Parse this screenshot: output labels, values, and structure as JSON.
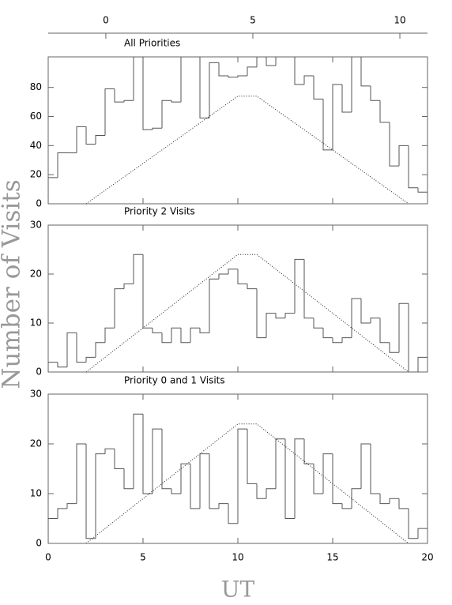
{
  "chart_data": [
    {
      "type": "histogram",
      "title": "All Priorities",
      "bins": [
        0,
        0.5,
        1,
        1.5,
        2,
        2.5,
        3,
        3.5,
        4,
        4.5,
        5,
        5.5,
        6,
        6.5,
        7,
        7.5,
        8,
        8.5,
        9,
        9.5,
        10,
        10.5,
        11,
        11.5,
        12,
        12.5,
        13,
        13.5,
        14,
        14.5,
        15,
        15.5,
        16,
        16.5,
        17,
        17.5,
        18,
        18.5,
        19,
        19.5,
        20
      ],
      "counts": [
        18,
        35,
        35,
        53,
        41,
        47,
        79,
        70,
        71,
        101,
        51,
        52,
        71,
        70,
        101,
        101,
        59,
        97,
        88,
        87,
        88,
        94,
        101,
        95,
        101,
        101,
        82,
        88,
        72,
        37,
        82,
        63,
        101,
        81,
        71,
        56,
        26,
        40,
        11,
        8
      ],
      "color": "#555555",
      "xlim": [
        0,
        20
      ],
      "ylim": [
        0,
        101
      ],
      "yticks": [
        0,
        20,
        40,
        60,
        80
      ],
      "x2lim": [
        -1.96,
        10.94
      ],
      "x2ticks": [
        0,
        5,
        10
      ],
      "line": {
        "x": [
          2,
          10,
          11,
          19
        ],
        "values": [
          0,
          74,
          74,
          0
        ]
      }
    },
    {
      "type": "histogram",
      "title": "Priority 2 Visits",
      "ylabel": "Number of Visits",
      "bins": [
        0,
        0.5,
        1,
        1.5,
        2,
        2.5,
        3,
        3.5,
        4,
        4.5,
        5,
        5.5,
        6,
        6.5,
        7,
        7.5,
        8,
        8.5,
        9,
        9.5,
        10,
        10.5,
        11,
        11.5,
        12,
        12.5,
        13,
        13.5,
        14,
        14.5,
        15,
        15.5,
        16,
        16.5,
        17,
        17.5,
        18,
        18.5,
        19,
        19.5,
        20
      ],
      "counts": [
        2,
        1,
        8,
        2,
        3,
        6,
        9,
        17,
        18,
        24,
        9,
        8,
        6,
        9,
        6,
        9,
        8,
        19,
        20,
        21,
        18,
        17,
        7,
        12,
        11,
        12,
        23,
        11,
        9,
        7,
        6,
        7,
        15,
        10,
        11,
        6,
        4,
        14,
        0,
        3
      ],
      "color": "#555555",
      "xlim": [
        0,
        20
      ],
      "ylim": [
        0,
        30
      ],
      "yticks": [
        0,
        10,
        20,
        30
      ],
      "line": {
        "x": [
          2,
          10,
          11,
          19
        ],
        "values": [
          0,
          24,
          24,
          0
        ]
      }
    },
    {
      "type": "histogram",
      "title": "Priority 0 and 1 Visits",
      "xlabel": "UT",
      "bins": [
        0,
        0.5,
        1,
        1.5,
        2,
        2.5,
        3,
        3.5,
        4,
        4.5,
        5,
        5.5,
        6,
        6.5,
        7,
        7.5,
        8,
        8.5,
        9,
        9.5,
        10,
        10.5,
        11,
        11.5,
        12,
        12.5,
        13,
        13.5,
        14,
        14.5,
        15,
        15.5,
        16,
        16.5,
        17,
        17.5,
        18,
        18.5,
        19,
        19.5,
        20
      ],
      "counts": [
        5,
        7,
        8,
        20,
        1,
        18,
        19,
        15,
        11,
        26,
        10,
        23,
        11,
        10,
        16,
        7,
        18,
        7,
        8,
        4,
        23,
        12,
        9,
        11,
        21,
        5,
        21,
        16,
        10,
        18,
        8,
        7,
        11,
        20,
        10,
        8,
        9,
        7,
        1,
        3
      ],
      "color": "#555555",
      "xlim": [
        0,
        20
      ],
      "xticks": [
        0,
        5,
        10,
        15,
        20
      ],
      "ylim": [
        0,
        30
      ],
      "yticks": [
        0,
        10,
        20,
        30
      ],
      "line": {
        "x": [
          2,
          10,
          11,
          19
        ],
        "values": [
          0,
          24,
          24,
          0
        ]
      }
    }
  ]
}
